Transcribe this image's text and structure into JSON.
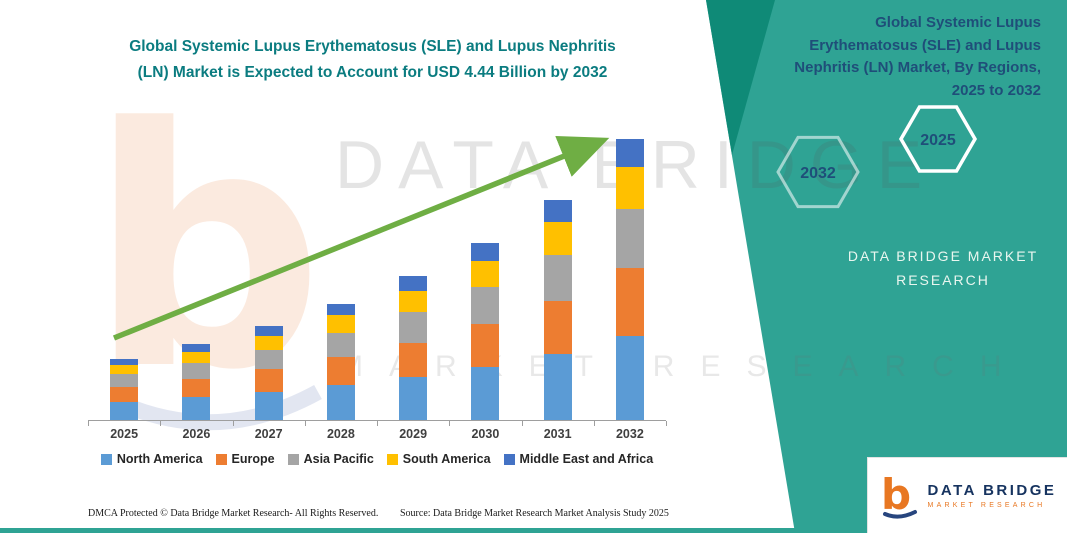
{
  "header": {
    "title_line1": "Global Systemic Lupus Erythematosus (SLE) and Lupus Nephritis",
    "title_line2": "(LN) Market is Expected to Account for USD 4.44 Billion by 2032"
  },
  "chart_data": {
    "type": "bar",
    "stacked": true,
    "title": "Global Systemic Lupus Erythematosus (SLE) and Lupus Nephritis (LN) Market is Expected to Account for USD 4.44 Billion by 2032",
    "unit": "USD Billion",
    "categories": [
      "2025",
      "2026",
      "2027",
      "2028",
      "2029",
      "2030",
      "2031",
      "2032"
    ],
    "series": [
      {
        "name": "North America",
        "color": "#5B9BD5",
        "values": [
          0.29,
          0.36,
          0.44,
          0.55,
          0.68,
          0.84,
          1.04,
          1.33
        ]
      },
      {
        "name": "Europe",
        "color": "#ED7D31",
        "values": [
          0.23,
          0.29,
          0.36,
          0.44,
          0.54,
          0.67,
          0.84,
          1.07
        ]
      },
      {
        "name": "Asia Pacific",
        "color": "#A5A5A5",
        "values": [
          0.2,
          0.25,
          0.31,
          0.39,
          0.48,
          0.59,
          0.73,
          0.93
        ]
      },
      {
        "name": "South America",
        "color": "#FFC000",
        "values": [
          0.15,
          0.18,
          0.22,
          0.28,
          0.34,
          0.42,
          0.52,
          0.67
        ]
      },
      {
        "name": "Middle East and Africa",
        "color": "#4472C4",
        "values": [
          0.1,
          0.12,
          0.15,
          0.18,
          0.23,
          0.28,
          0.35,
          0.44
        ]
      }
    ],
    "totals": [
      0.97,
      1.2,
      1.48,
      1.84,
      2.27,
      2.8,
      3.48,
      4.44
    ],
    "xlabel": "",
    "ylabel": "",
    "ylim": [
      0,
      4.8
    ],
    "grid": false,
    "y_axis_visible": false,
    "legend_position": "bottom",
    "trend_arrow": true
  },
  "watermark": {
    "brand": "DATA BRIDGE",
    "tagline": "MARKET RESEARCH"
  },
  "side_panel": {
    "heading": "Global Systemic Lupus Erythematosus (SLE) and Lupus Nephritis (LN) Market, By Regions, 2025 to 2032",
    "hexagons": [
      {
        "label": "2032"
      },
      {
        "label": "2025"
      }
    ],
    "brand_caption": "DATA BRIDGE MARKET RESEARCH"
  },
  "footer": {
    "dmca": "DMCA Protected © Data Bridge Market Research-  All Rights Reserved.",
    "source": "Source: Data Bridge Market Research  Market Analysis Study 2025"
  },
  "logo": {
    "brand": "DATA BRIDGE",
    "subtitle": "MARKET RESEARCH"
  },
  "colors": {
    "panel_teal": "#2fa394",
    "panel_accent": "#0f8a77",
    "title_teal": "#0b7c80",
    "heading_navy": "#1f4e79",
    "arrow_green": "#6fae44"
  }
}
